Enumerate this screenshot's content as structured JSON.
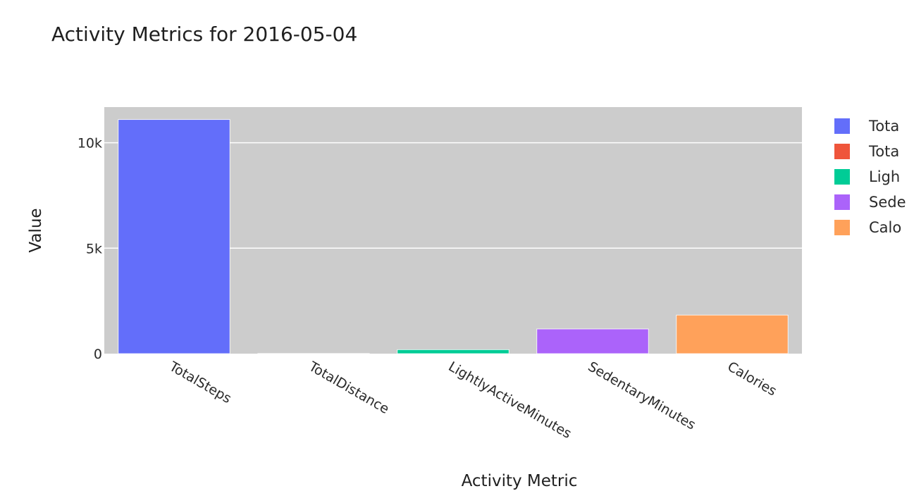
{
  "chart_data": {
    "type": "bar",
    "title": "Activity Metrics for 2016-05-04",
    "xlabel": "Activity Metric",
    "ylabel": "Value",
    "ylim": [
      0,
      11690
    ],
    "yticks": [
      {
        "value": 0,
        "label": "0"
      },
      {
        "value": 5000,
        "label": "5k"
      },
      {
        "value": 10000,
        "label": "10k"
      }
    ],
    "grid": true,
    "legend": "right",
    "plot_background": "#cccccc",
    "categories": [
      "TotalSteps",
      "TotalDistance",
      "LightlyActiveMinutes",
      "SedentaryMinutes",
      "Calories"
    ],
    "series": [
      {
        "name": "TotalSteps",
        "legend_label": "Tota",
        "color": "#636efa",
        "values": [
          11100,
          0,
          0,
          0,
          0
        ]
      },
      {
        "name": "TotalDistance",
        "legend_label": "Tota",
        "color": "#ef553b",
        "values": [
          0,
          8,
          0,
          0,
          0
        ]
      },
      {
        "name": "LightlyActiveMinutes",
        "legend_label": "Ligh",
        "color": "#00cc96",
        "values": [
          0,
          0,
          190,
          0,
          0
        ]
      },
      {
        "name": "SedentaryMinutes",
        "legend_label": "Sede",
        "color": "#ab63fa",
        "values": [
          0,
          0,
          0,
          1170,
          0
        ]
      },
      {
        "name": "Calories",
        "legend_label": "Calo",
        "color": "#ffa15a",
        "values": [
          0,
          0,
          0,
          0,
          1830
        ]
      }
    ]
  }
}
